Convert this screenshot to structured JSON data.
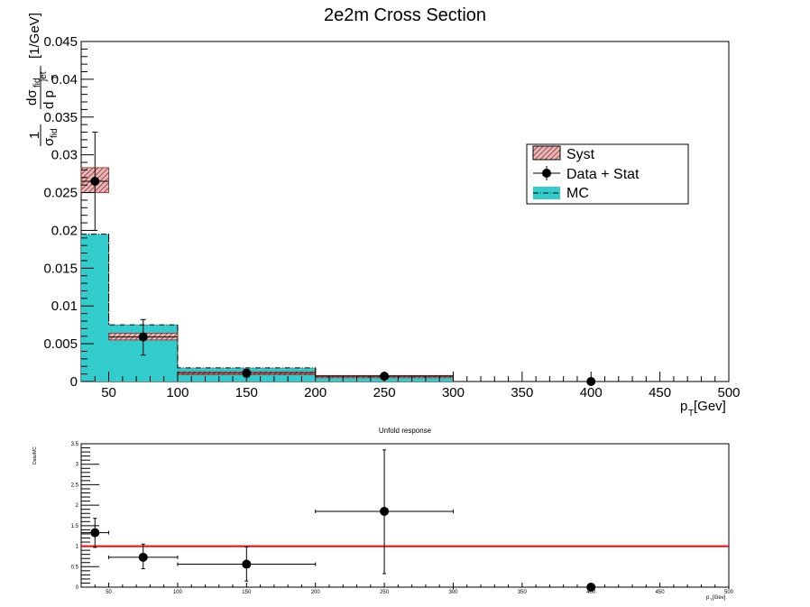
{
  "chart_data": [
    {
      "type": "bar",
      "title": "2e2m Cross Section",
      "ylabel": "1/σ_fid dσ_fid/dp_T^jet [1/GeV]",
      "ylabel_parts": {
        "one": "1",
        "dsig": "dσ",
        "fid_num": "fid",
        "sig": "σ",
        "fid_den": "fid",
        "dpt": "d p",
        "jet": "jet",
        "T": "T",
        "unit": "[1/GeV]"
      },
      "xlabel": "p",
      "xlabel_sub": "T",
      "xlabel_unit": " [Gev]",
      "xlim": [
        30,
        500
      ],
      "ylim": [
        0,
        0.045
      ],
      "x_ticks": [
        50,
        100,
        150,
        200,
        250,
        300,
        350,
        400,
        450,
        500
      ],
      "y_ticks": [
        "0",
        "0.005",
        "0.01",
        "0.015",
        "0.02",
        "0.025",
        "0.03",
        "0.035",
        "0.04",
        "0.045"
      ],
      "legend": {
        "position": "upper-right",
        "entries": [
          "Syst",
          "Data + Stat",
          "MC"
        ]
      },
      "mc": {
        "name": "MC",
        "color": "#33cccc",
        "bins": [
          {
            "lo": 30,
            "hi": 50,
            "value": 0.0195
          },
          {
            "lo": 50,
            "hi": 100,
            "value": 0.0075
          },
          {
            "lo": 100,
            "hi": 200,
            "value": 0.0018
          },
          {
            "lo": 200,
            "hi": 300,
            "value": 0.0006
          },
          {
            "lo": 300,
            "hi": 500,
            "value": 0.0
          }
        ]
      },
      "syst": {
        "name": "Syst",
        "color": "#b23a3a",
        "bins": [
          {
            "lo": 30,
            "hi": 50,
            "low": 0.025,
            "high": 0.0283
          },
          {
            "lo": 50,
            "hi": 100,
            "low": 0.0055,
            "high": 0.0064
          },
          {
            "lo": 100,
            "hi": 200,
            "low": 0.0009,
            "high": 0.0013
          },
          {
            "lo": 200,
            "hi": 300,
            "low": 0.0005,
            "high": 0.0008
          },
          {
            "lo": 300,
            "hi": 500,
            "low": 0.0,
            "high": 0.0
          }
        ]
      },
      "data": {
        "name": "Data + Stat",
        "points": [
          {
            "x": 40,
            "y": 0.0265,
            "ylo": 0.02,
            "yhi": 0.033
          },
          {
            "x": 75,
            "y": 0.0059,
            "ylo": 0.0035,
            "yhi": 0.0082
          },
          {
            "x": 150,
            "y": 0.0011,
            "ylo": 0.0006,
            "yhi": 0.0016
          },
          {
            "x": 250,
            "y": 0.0007,
            "ylo": 0.0003,
            "yhi": 0.0011
          },
          {
            "x": 400,
            "y": 0.0,
            "ylo": 0.0,
            "yhi": 0.0
          }
        ]
      }
    },
    {
      "type": "scatter",
      "title": "Unfold response",
      "ylabel": "Data/MC",
      "xlabel": "p",
      "xlabel_sub": "T",
      "xlabel_unit": " [Gev]",
      "xlim": [
        30,
        500
      ],
      "ylim": [
        0,
        3.5
      ],
      "x_ticks": [
        50,
        100,
        150,
        200,
        250,
        300,
        350,
        400,
        450,
        500
      ],
      "y_ticks": [
        "0",
        "0.5",
        "1",
        "1.5",
        "2",
        "2.5",
        "3",
        "3.5"
      ],
      "reference_line": {
        "y": 1,
        "color": "#ff0000"
      },
      "points": [
        {
          "x": 40,
          "y": 1.33,
          "xlo": 30,
          "xhi": 50,
          "ylo": 0.97,
          "yhi": 1.68
        },
        {
          "x": 75,
          "y": 0.73,
          "xlo": 50,
          "xhi": 100,
          "ylo": 0.45,
          "yhi": 1.05
        },
        {
          "x": 150,
          "y": 0.56,
          "xlo": 100,
          "xhi": 200,
          "ylo": 0.15,
          "yhi": 0.98
        },
        {
          "x": 250,
          "y": 1.85,
          "xlo": 200,
          "xhi": 300,
          "ylo": 0.33,
          "yhi": 3.35
        },
        {
          "x": 400,
          "y": 0.0,
          "xlo": 300,
          "xhi": 500,
          "ylo": 0.0,
          "yhi": 0.0
        }
      ]
    }
  ]
}
